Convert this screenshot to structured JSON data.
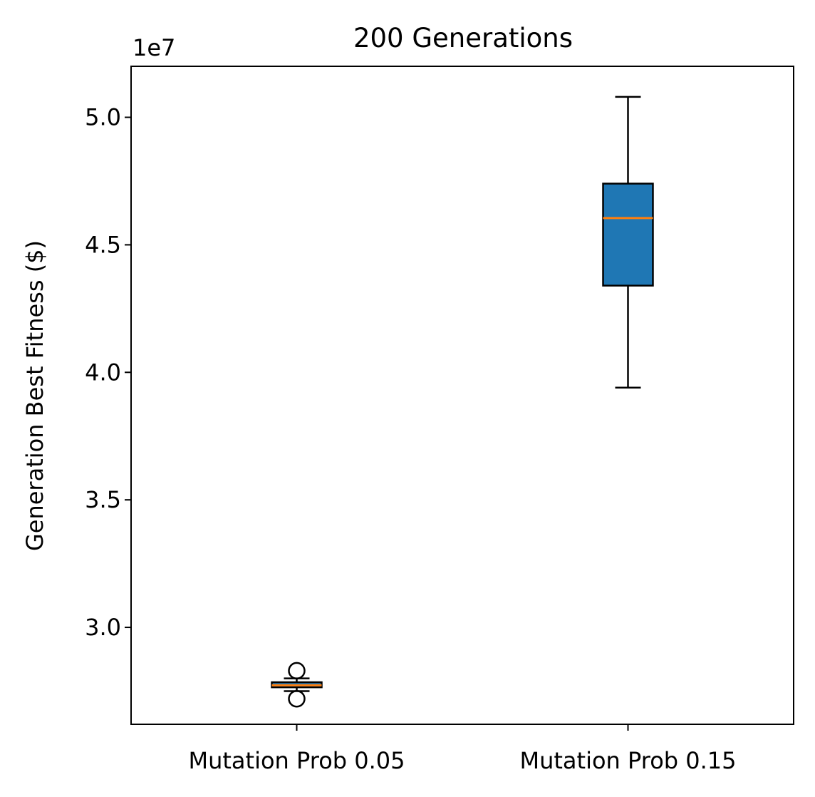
{
  "chart_data": {
    "type": "box",
    "title": "200 Generations",
    "xlabel": "",
    "ylabel": "Generation Best Fitness ($)",
    "y_offset_label": "1e7",
    "y_scale": 10000000,
    "ylim": [
      2.62,
      5.2
    ],
    "yticks": [
      3.0,
      3.5,
      4.0,
      4.5,
      5.0
    ],
    "ytick_labels": [
      "3.0",
      "3.5",
      "4.0",
      "4.5",
      "5.0"
    ],
    "grid": false,
    "categories": [
      "Mutation Prob 0.05",
      "Mutation Prob 0.15"
    ],
    "boxes": [
      {
        "label": "Mutation Prob 0.05",
        "whisker_low": 2.75,
        "q1": 2.765,
        "median": 2.773,
        "q3": 2.785,
        "whisker_high": 2.8,
        "outliers": [
          2.83,
          2.72
        ],
        "fill": "#1f77b4",
        "median_color": "#ff7f0e"
      },
      {
        "label": "Mutation Prob 0.15",
        "whisker_low": 3.94,
        "q1": 4.34,
        "median": 4.605,
        "q3": 4.74,
        "whisker_high": 5.08,
        "outliers": [],
        "fill": "#1f77b4",
        "median_color": "#ff7f0e"
      }
    ]
  }
}
